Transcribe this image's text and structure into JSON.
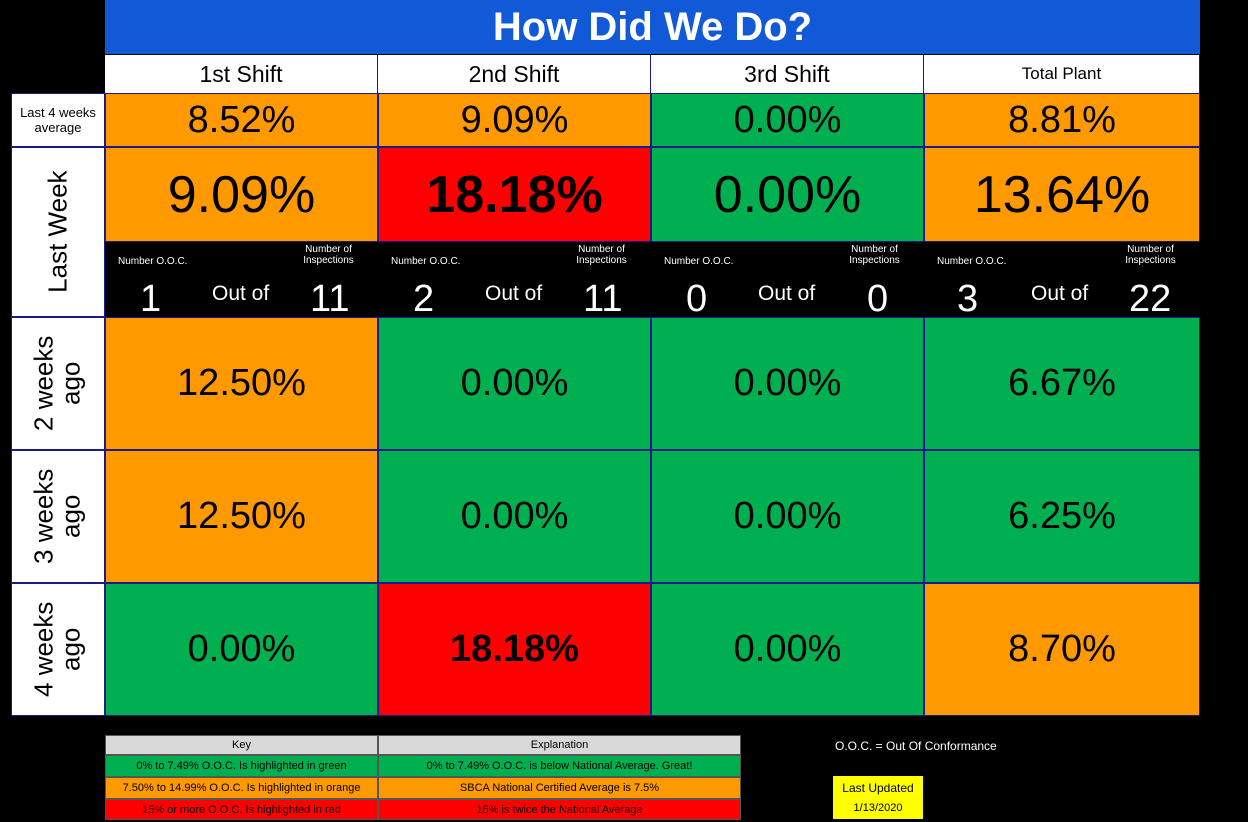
{
  "title": "How Did We Do?",
  "columns": [
    "1st Shift",
    "2nd Shift",
    "3rd Shift",
    "Total Plant"
  ],
  "rows": {
    "avg4": {
      "label": "Last 4 weeks average",
      "values": [
        "8.52%",
        "9.09%",
        "0.00%",
        "8.81%"
      ]
    },
    "last_week": {
      "label": "Last Week",
      "values": [
        "9.09%",
        "18.18%",
        "0.00%",
        "13.64%"
      ]
    },
    "w2": {
      "label_l1": "2 weeks",
      "label_l2": "ago",
      "values": [
        "12.50%",
        "0.00%",
        "0.00%",
        "6.67%"
      ]
    },
    "w3": {
      "label_l1": "3 weeks",
      "label_l2": "ago",
      "values": [
        "12.50%",
        "0.00%",
        "0.00%",
        "6.25%"
      ]
    },
    "w4": {
      "label_l1": "4 weeks",
      "label_l2": "ago",
      "values": [
        "0.00%",
        "18.18%",
        "0.00%",
        "8.70%"
      ]
    }
  },
  "counts": {
    "num_ooc_label": "Number O.O.C.",
    "num_insp_l1": "Number of",
    "num_insp_l2": "Inspections",
    "out_of": "Out of",
    "items": [
      {
        "ooc": "1",
        "insp": "11"
      },
      {
        "ooc": "2",
        "insp": "11"
      },
      {
        "ooc": "0",
        "insp": "0"
      },
      {
        "ooc": "3",
        "insp": "22"
      }
    ]
  },
  "key": {
    "head_key": "Key",
    "head_expl": "Explanation",
    "rows": [
      {
        "key": "0% to 7.49% O.O.C. Is highlighted in green",
        "expl": "0% to 7.49% O.O.C. is below National Average. Great!"
      },
      {
        "key": "7.50% to 14.99%  O.O.C. Is highlighted in orange",
        "expl": "SBCA National Certified Average is 7.5%"
      },
      {
        "key": "15% or more O.O.C. Is highlighted in red",
        "expl": "15% is twice the National Average"
      }
    ]
  },
  "ooc_note": "O.O.C. = Out Of Conformance",
  "last_updated": {
    "label": "Last Updated",
    "date": "1/13/2020"
  },
  "colors": {
    "green": "#00b050",
    "orange": "#ff9900",
    "red": "#ff0000",
    "title_blue": "#1159d6",
    "key_gray": "#d9d9d9",
    "yellow": "#ffff00"
  }
}
